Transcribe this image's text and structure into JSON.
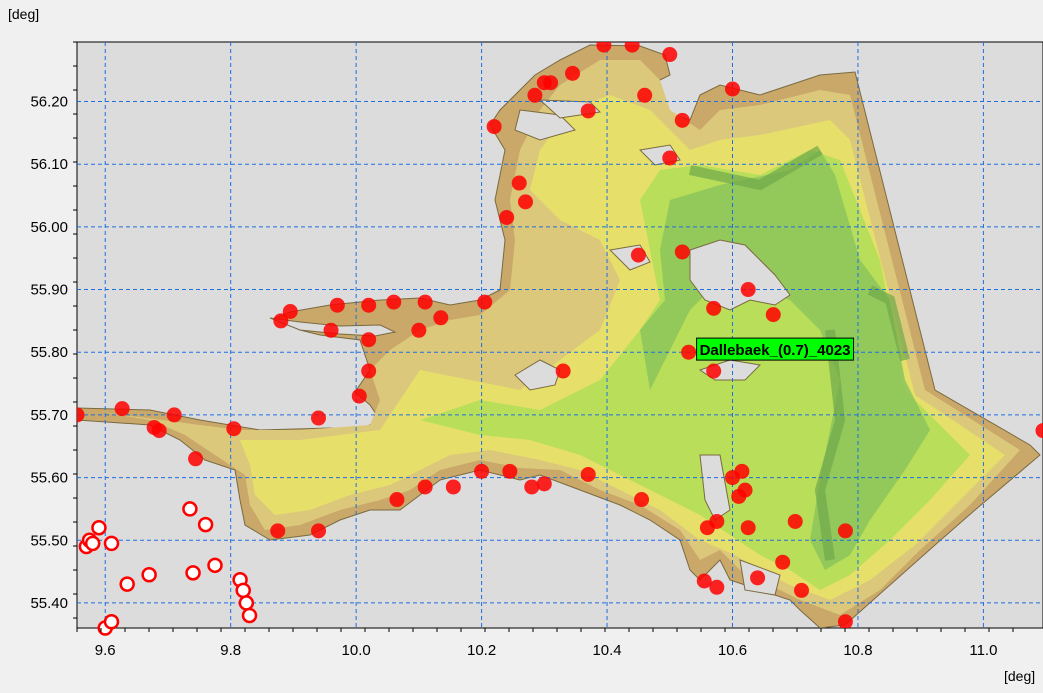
{
  "axes": {
    "x_unit": "[deg]",
    "y_unit": "[deg]",
    "x_ticks": [
      "9.6",
      "9.8",
      "10.0",
      "10.2",
      "10.4",
      "10.6",
      "10.8",
      "11.0"
    ],
    "y_ticks": [
      "56.20",
      "56.10",
      "56.00",
      "55.90",
      "55.80",
      "55.70",
      "55.60",
      "55.50",
      "55.40"
    ],
    "xlim": [
      9.555,
      11.095
    ],
    "ylim": [
      55.36,
      56.295
    ],
    "grid": true
  },
  "colors": {
    "land": "#dcdcdc",
    "shallow": "#c9a86a",
    "mid": "#dcc87a",
    "sea": "#e6e06a",
    "deep": "#b8de5a",
    "channel": "#8cc45a",
    "marker_fill": "#ff0000",
    "grid": "#1e6fe0",
    "label_bg": "#00ff00"
  },
  "label": {
    "text": "Dallebaek_(0.7)_4023",
    "lon": 10.53,
    "lat": 55.805
  },
  "filled_markers": [
    [
      9.555,
      55.7
    ],
    [
      9.627,
      55.71
    ],
    [
      9.678,
      55.68
    ],
    [
      9.686,
      55.675
    ],
    [
      9.71,
      55.7
    ],
    [
      9.744,
      55.63
    ],
    [
      9.805,
      55.678
    ],
    [
      9.875,
      55.515
    ],
    [
      9.94,
      55.515
    ],
    [
      9.94,
      55.695
    ],
    [
      9.88,
      55.85
    ],
    [
      9.895,
      55.865
    ],
    [
      9.96,
      55.835
    ],
    [
      9.97,
      55.875
    ],
    [
      10.02,
      55.875
    ],
    [
      10.06,
      55.88
    ],
    [
      10.02,
      55.82
    ],
    [
      10.02,
      55.77
    ],
    [
      10.005,
      55.73
    ],
    [
      10.065,
      55.565
    ],
    [
      10.1,
      55.835
    ],
    [
      10.11,
      55.88
    ],
    [
      10.135,
      55.855
    ],
    [
      10.11,
      55.585
    ],
    [
      10.155,
      55.585
    ],
    [
      10.2,
      55.61
    ],
    [
      10.205,
      55.88
    ],
    [
      10.245,
      55.61
    ],
    [
      10.28,
      55.585
    ],
    [
      10.3,
      55.59
    ],
    [
      10.37,
      55.605
    ],
    [
      10.33,
      55.77
    ],
    [
      10.285,
      56.21
    ],
    [
      10.3,
      56.23
    ],
    [
      10.31,
      56.23
    ],
    [
      10.345,
      56.245
    ],
    [
      10.37,
      56.185
    ],
    [
      10.395,
      56.29
    ],
    [
      10.44,
      56.29
    ],
    [
      10.46,
      56.21
    ],
    [
      10.5,
      56.275
    ],
    [
      10.52,
      56.17
    ],
    [
      10.5,
      56.11
    ],
    [
      10.22,
      56.16
    ],
    [
      10.26,
      56.07
    ],
    [
      10.27,
      56.04
    ],
    [
      10.24,
      56.015
    ],
    [
      10.45,
      55.955
    ],
    [
      10.52,
      55.96
    ],
    [
      10.53,
      55.8
    ],
    [
      10.57,
      55.87
    ],
    [
      10.57,
      55.77
    ],
    [
      10.6,
      56.22
    ],
    [
      10.625,
      55.9
    ],
    [
      10.665,
      55.86
    ],
    [
      10.455,
      55.565
    ],
    [
      10.56,
      55.52
    ],
    [
      10.575,
      55.53
    ],
    [
      10.6,
      55.6
    ],
    [
      10.615,
      55.61
    ],
    [
      10.61,
      55.57
    ],
    [
      10.62,
      55.58
    ],
    [
      10.625,
      55.52
    ],
    [
      10.555,
      55.435
    ],
    [
      10.575,
      55.425
    ],
    [
      10.64,
      55.44
    ],
    [
      10.68,
      55.465
    ],
    [
      10.7,
      55.53
    ],
    [
      10.71,
      55.42
    ],
    [
      10.78,
      55.515
    ],
    [
      10.78,
      55.37
    ],
    [
      11.095,
      55.675
    ]
  ],
  "open_markers": [
    [
      9.57,
      55.49
    ],
    [
      9.575,
      55.5
    ],
    [
      9.58,
      55.495
    ],
    [
      9.59,
      55.52
    ],
    [
      9.6,
      55.36
    ],
    [
      9.61,
      55.37
    ],
    [
      9.61,
      55.495
    ],
    [
      9.635,
      55.43
    ],
    [
      9.67,
      55.445
    ],
    [
      9.735,
      55.55
    ],
    [
      9.74,
      55.448
    ],
    [
      9.76,
      55.525
    ],
    [
      9.775,
      55.46
    ],
    [
      9.815,
      55.437
    ],
    [
      9.82,
      55.42
    ],
    [
      9.825,
      55.4
    ],
    [
      9.83,
      55.38
    ]
  ]
}
